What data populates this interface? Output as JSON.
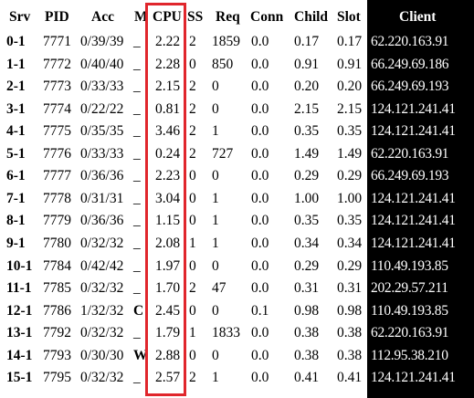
{
  "headers": [
    "Srv",
    "PID",
    "Acc",
    "M",
    "CPU",
    "SS",
    "Req",
    "Conn",
    "Child",
    "Slot",
    "Client"
  ],
  "rows": [
    {
      "srv": "0-1",
      "pid": "7771",
      "acc": "0/39/39",
      "m": "_",
      "cpu": "2.22",
      "ss": "2",
      "req": "1859",
      "conn": "0.0",
      "child": "0.17",
      "slot": "0.17",
      "client": "62.220.163.91"
    },
    {
      "srv": "1-1",
      "pid": "7772",
      "acc": "0/40/40",
      "m": "_",
      "cpu": "2.28",
      "ss": "0",
      "req": "850",
      "conn": "0.0",
      "child": "0.91",
      "slot": "0.91",
      "client": "66.249.69.186"
    },
    {
      "srv": "2-1",
      "pid": "7773",
      "acc": "0/33/33",
      "m": "_",
      "cpu": "2.15",
      "ss": "2",
      "req": "0",
      "conn": "0.0",
      "child": "0.20",
      "slot": "0.20",
      "client": "66.249.69.193"
    },
    {
      "srv": "3-1",
      "pid": "7774",
      "acc": "0/22/22",
      "m": "_",
      "cpu": "0.81",
      "ss": "2",
      "req": "0",
      "conn": "0.0",
      "child": "2.15",
      "slot": "2.15",
      "client": "124.121.241.41"
    },
    {
      "srv": "4-1",
      "pid": "7775",
      "acc": "0/35/35",
      "m": "_",
      "cpu": "3.46",
      "ss": "2",
      "req": "1",
      "conn": "0.0",
      "child": "0.35",
      "slot": "0.35",
      "client": "124.121.241.41"
    },
    {
      "srv": "5-1",
      "pid": "7776",
      "acc": "0/33/33",
      "m": "_",
      "cpu": "0.24",
      "ss": "2",
      "req": "727",
      "conn": "0.0",
      "child": "1.49",
      "slot": "1.49",
      "client": "62.220.163.91"
    },
    {
      "srv": "6-1",
      "pid": "7777",
      "acc": "0/36/36",
      "m": "_",
      "cpu": "2.23",
      "ss": "0",
      "req": "0",
      "conn": "0.0",
      "child": "0.29",
      "slot": "0.29",
      "client": "66.249.69.193"
    },
    {
      "srv": "7-1",
      "pid": "7778",
      "acc": "0/31/31",
      "m": "_",
      "cpu": "3.04",
      "ss": "0",
      "req": "1",
      "conn": "0.0",
      "child": "1.00",
      "slot": "1.00",
      "client": "124.121.241.41"
    },
    {
      "srv": "8-1",
      "pid": "7779",
      "acc": "0/36/36",
      "m": "_",
      "cpu": "1.15",
      "ss": "0",
      "req": "1",
      "conn": "0.0",
      "child": "0.35",
      "slot": "0.35",
      "client": "124.121.241.41"
    },
    {
      "srv": "9-1",
      "pid": "7780",
      "acc": "0/32/32",
      "m": "_",
      "cpu": "2.08",
      "ss": "1",
      "req": "1",
      "conn": "0.0",
      "child": "0.34",
      "slot": "0.34",
      "client": "124.121.241.41"
    },
    {
      "srv": "10-1",
      "pid": "7784",
      "acc": "0/42/42",
      "m": "_",
      "cpu": "1.97",
      "ss": "0",
      "req": "0",
      "conn": "0.0",
      "child": "0.29",
      "slot": "0.29",
      "client": "110.49.193.85"
    },
    {
      "srv": "11-1",
      "pid": "7785",
      "acc": "0/32/32",
      "m": "_",
      "cpu": "1.70",
      "ss": "2",
      "req": "47",
      "conn": "0.0",
      "child": "0.31",
      "slot": "0.31",
      "client": "202.29.57.211"
    },
    {
      "srv": "12-1",
      "pid": "7786",
      "acc": "1/32/32",
      "m": "C",
      "cpu": "2.45",
      "ss": "0",
      "req": "0",
      "conn": "0.1",
      "child": "0.98",
      "slot": "0.98",
      "client": "110.49.193.85"
    },
    {
      "srv": "13-1",
      "pid": "7792",
      "acc": "0/32/32",
      "m": "_",
      "cpu": "1.79",
      "ss": "1",
      "req": "1833",
      "conn": "0.0",
      "child": "0.38",
      "slot": "0.38",
      "client": "62.220.163.91"
    },
    {
      "srv": "14-1",
      "pid": "7793",
      "acc": "0/30/30",
      "m": "W",
      "cpu": "2.88",
      "ss": "0",
      "req": "0",
      "conn": "0.0",
      "child": "0.38",
      "slot": "0.38",
      "client": "112.95.38.210"
    },
    {
      "srv": "15-1",
      "pid": "7795",
      "acc": "0/32/32",
      "m": "_",
      "cpu": "2.57",
      "ss": "2",
      "req": "1",
      "conn": "0.0",
      "child": "0.41",
      "slot": "0.41",
      "client": "124.121.241.41"
    }
  ],
  "colors": {
    "highlight": "#e0262c",
    "client_bg": "#000000",
    "client_text": "#ffffff"
  }
}
